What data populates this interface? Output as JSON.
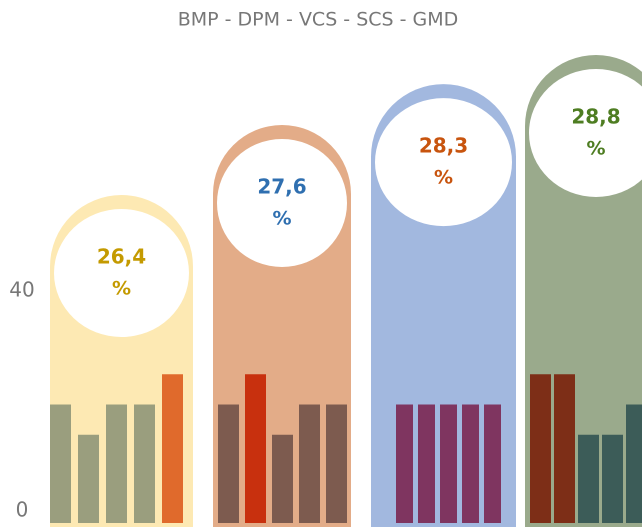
{
  "chart_data": {
    "type": "bar",
    "title": "BMP  - DPM  - VCS  - SCS  - GMD",
    "ylim": [
      0,
      40
    ],
    "yticks": [
      0,
      40
    ],
    "value_unit": "%",
    "groups": [
      {
        "value": 26.4,
        "value_label": "26,4",
        "color": "#fde9b3",
        "label_color": "#c49a00",
        "bars": [
          21,
          15.5,
          21,
          21,
          26.5
        ],
        "bar_colors": [
          "#9a9e7e",
          "#9a9e7e",
          "#9a9e7e",
          "#9a9e7e",
          "#e06a2c"
        ]
      },
      {
        "value": 27.6,
        "value_label": "27,6",
        "color": "#e3ac88",
        "label_color": "#2f6fb0",
        "bars": [
          21,
          26.5,
          15.5,
          21,
          21
        ],
        "bar_colors": [
          "#7d5b4f",
          "#c8300e",
          "#7d5b4f",
          "#7d5b4f",
          "#7d5b4f"
        ]
      },
      {
        "value": 28.3,
        "value_label": "28,3",
        "color": "#a2b8df",
        "label_color": "#c8540e",
        "bars": [
          21,
          21,
          21,
          21,
          21
        ],
        "bar_colors": [
          "#7f3560",
          "#7f3560",
          "#7f3560",
          "#7f3560",
          "#7f3560"
        ]
      },
      {
        "value": 28.8,
        "value_label": "28,8",
        "color": "#9aaa8c",
        "label_color": "#4e7d22",
        "bars": [
          26.5,
          26.5,
          15.5,
          15.5,
          21
        ],
        "bar_colors": [
          "#7d2e17",
          "#7d2e17",
          "#3c5c58",
          "#3c5c58",
          "#3c5c58"
        ]
      }
    ]
  }
}
